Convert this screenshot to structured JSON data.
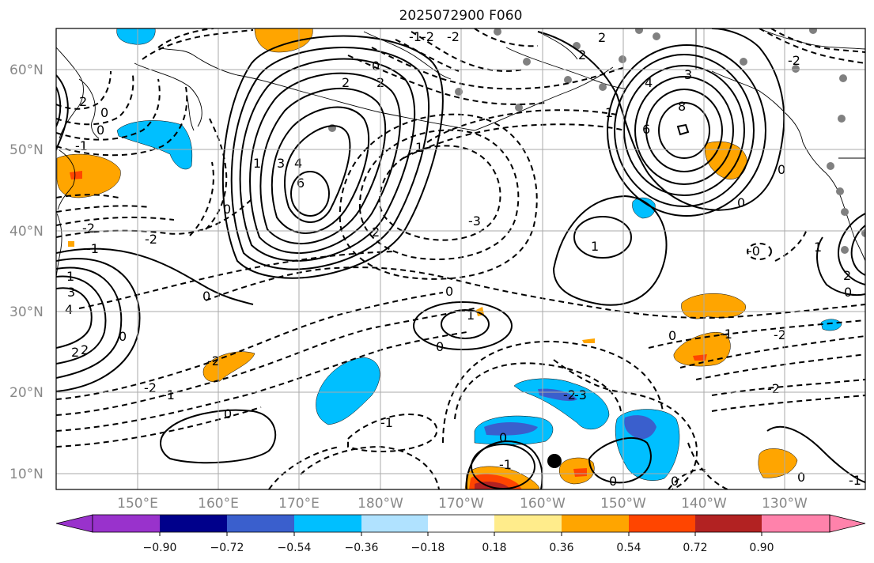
{
  "title": "2025072900 F060",
  "map": {
    "lat_ticks": [
      "10°N",
      "20°N",
      "30°N",
      "40°N",
      "50°N",
      "60°N"
    ],
    "lon_ticks": [
      "150°E",
      "160°E",
      "170°E",
      "180°W",
      "170°W",
      "160°W",
      "150°W",
      "140°W",
      "130°W"
    ],
    "contour_labels": [
      "0",
      "1",
      "2",
      "3",
      "4",
      "6",
      "8",
      "-1",
      "-2",
      "-3"
    ],
    "station_marker": "black-dot"
  },
  "colorbar": {
    "ticks": [
      "−0.90",
      "−0.72",
      "−0.54",
      "−0.36",
      "−0.18",
      "0.18",
      "0.36",
      "0.54",
      "0.72",
      "0.90"
    ],
    "colors": [
      "#9932cc",
      "#00008b",
      "#3a5fcd",
      "#00bfff",
      "#b0e2ff",
      "#ffffff",
      "#ffec8b",
      "#ffa500",
      "#ff4500",
      "#b22222",
      "#ff82ab"
    ]
  },
  "shading_colors": {
    "positive_light": "#ffa500",
    "positive_strong": "#ff4500",
    "positive_max": "#b22222",
    "negative_light": "#00bfff",
    "negative_mid": "#3a5fcd"
  }
}
